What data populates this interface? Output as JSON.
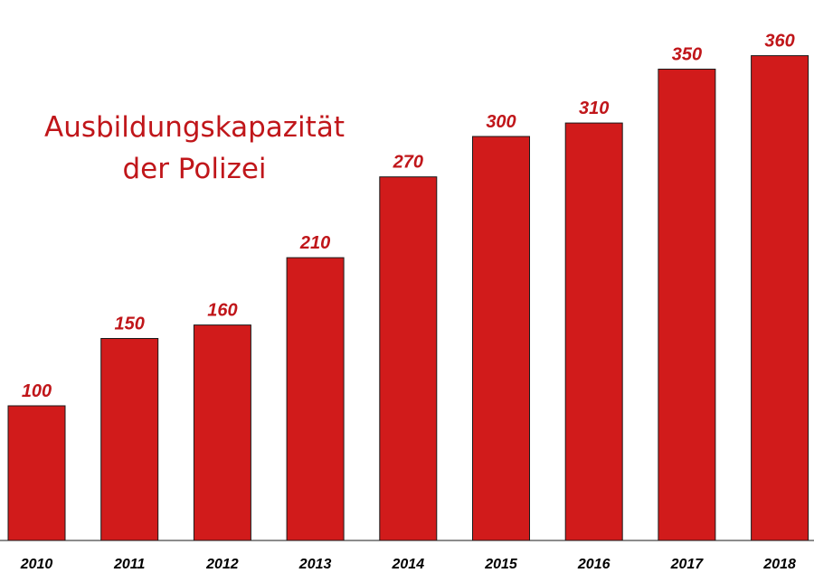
{
  "chart_data": {
    "type": "bar",
    "title_lines": [
      "Ausbildungskapazität",
      "der Polizei"
    ],
    "categories": [
      "2010",
      "2011",
      "2012",
      "2013",
      "2014",
      "2015",
      "2016",
      "2017",
      "2018"
    ],
    "values": [
      100,
      150,
      160,
      210,
      270,
      300,
      310,
      350,
      360
    ],
    "value_labels": [
      "100",
      "150",
      "160",
      "210",
      "270",
      "300",
      "310",
      "350",
      "360"
    ],
    "xlabel": "",
    "ylabel": "",
    "ylim": [
      0,
      380
    ],
    "grid": false,
    "legend": "none",
    "colors": {
      "bar": "#d11b1b",
      "bar_outline": "#1a1a1a",
      "value_label": "#c0161a",
      "title": "#c0161a",
      "axis": "#1a1a1a"
    }
  }
}
